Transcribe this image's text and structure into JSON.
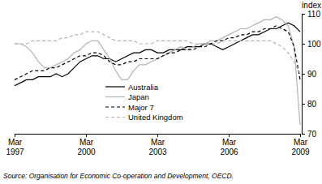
{
  "chart_data": {
    "type": "line",
    "y_label": "index",
    "source": "Source: Organisation for Economic Co-operation and Development, OECD.",
    "categories": [
      "Mar 1997",
      null,
      null,
      null,
      null,
      null,
      null,
      null,
      null,
      null,
      null,
      null,
      "Mar 2000",
      null,
      null,
      null,
      null,
      null,
      null,
      null,
      null,
      null,
      null,
      null,
      "Mar 2003",
      null,
      null,
      null,
      null,
      null,
      null,
      null,
      null,
      null,
      null,
      null,
      "Mar 2006",
      null,
      null,
      null,
      null,
      null,
      null,
      null,
      null,
      null,
      null,
      null,
      "Mar 2009"
    ],
    "series": [
      {
        "name": "Australia",
        "color": "#000000",
        "line_style": "solid",
        "values": [
          86,
          87,
          88,
          88,
          89,
          89,
          89,
          90,
          89,
          90,
          92,
          94,
          95,
          96,
          96,
          95,
          95,
          94,
          95,
          96,
          97,
          97,
          98,
          98,
          97,
          97,
          98,
          98,
          98,
          99,
          99,
          99,
          100,
          100,
          99,
          98,
          99,
          100,
          101,
          102,
          103,
          103,
          104,
          105,
          105,
          106,
          107,
          106,
          104
        ]
      },
      {
        "name": "Japan",
        "color": "#b3b3b3",
        "line_style": "solid",
        "values": [
          100,
          100,
          99,
          97,
          94,
          92,
          92,
          93,
          94,
          95,
          97,
          98,
          100,
          101,
          101,
          98,
          95,
          91,
          88,
          88,
          91,
          93,
          93,
          94,
          95,
          96,
          97,
          98,
          99,
          98,
          99,
          100,
          100,
          101,
          101,
          102,
          103,
          104,
          105,
          105,
          106,
          107,
          108,
          108,
          109,
          108,
          106,
          99,
          73
        ]
      },
      {
        "name": "Major 7",
        "color": "#000000",
        "line_style": "dashed",
        "values": [
          88,
          89,
          90,
          91,
          91,
          91,
          92,
          92,
          93,
          94,
          95,
          96,
          96,
          97,
          97,
          96,
          94,
          93,
          93,
          94,
          94,
          95,
          95,
          95,
          95,
          96,
          97,
          97,
          98,
          98,
          98,
          99,
          99,
          100,
          101,
          101,
          102,
          102,
          103,
          103,
          104,
          104,
          105,
          105,
          106,
          105,
          104,
          99,
          88
        ]
      },
      {
        "name": "United Kingdom",
        "color": "#b3b3b3",
        "line_style": "dashed",
        "values": [
          100,
          100,
          100,
          101,
          101,
          101,
          101,
          101,
          102,
          102,
          103,
          103,
          104,
          104,
          104,
          103,
          102,
          101,
          101,
          101,
          101,
          100,
          100,
          100,
          101,
          101,
          101,
          101,
          101,
          101,
          100,
          100,
          100,
          100,
          100,
          101,
          101,
          101,
          101,
          101,
          101,
          101,
          101,
          101,
          100,
          99,
          97,
          94,
          90
        ]
      }
    ],
    "ylim": [
      70,
      110
    ],
    "yticks": [
      70,
      80,
      90,
      100,
      110
    ],
    "grid": false,
    "legend": "lower left"
  }
}
